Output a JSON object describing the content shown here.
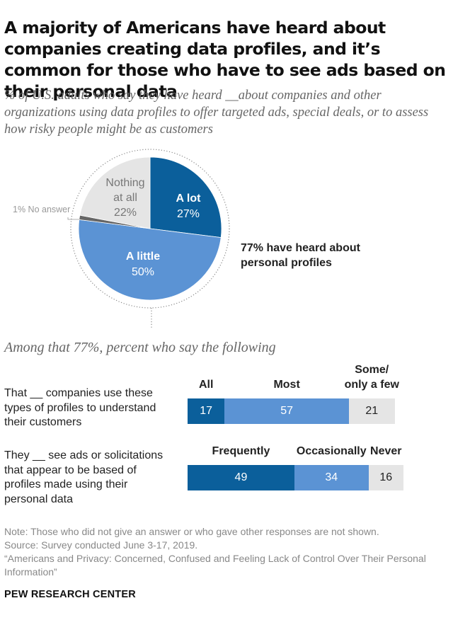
{
  "title": "A majority of Americans have heard about companies creating data profiles, and it’s common for those who have to see ads based on their personal data",
  "subtitle": "% of U.S. adults who say they have heard __about companies and other organizations using data profiles to offer targeted ads, special deals, or to assess how risky people might be as customers",
  "heard_note": "77% have heard about personal profiles",
  "among_label": "Among that 77%, percent who say the following",
  "note": "Note: Those who did not give an answer or who gave other responses are not shown.",
  "source": "Source: Survey conducted June 3-17, 2019.",
  "report": "“Americans and Privacy: Concerned, Confused and Feeling Lack of Control Over Their Personal Information”",
  "brand": "PEW RESEARCH CENTER",
  "colors": {
    "dark_blue": "#0b5f9b",
    "mid_blue": "#5b93d4",
    "light_gray": "#e5e5e5",
    "no_answer": "#666666"
  },
  "chart_data": [
    {
      "type": "pie",
      "slices": [
        {
          "label": "A lot",
          "value": 27,
          "display": "27%",
          "color": "#0b5f9b"
        },
        {
          "label": "A little",
          "value": 50,
          "display": "50%",
          "color": "#5b93d4"
        },
        {
          "label": "No answer",
          "value": 1,
          "display": "1%",
          "color": "#666666"
        },
        {
          "label": "Nothing at all",
          "value": 22,
          "display": "22%",
          "color": "#e5e5e5"
        }
      ],
      "no_answer_text": "1% No answer",
      "nothing_line1": "Nothing",
      "nothing_line2": "at all"
    },
    {
      "type": "bar",
      "orientation": "horizontal-stacked",
      "rows": [
        {
          "label_lines": [
            "That __ companies use these",
            "types of profiles to understand",
            "their customers"
          ],
          "segments": [
            {
              "name": "All",
              "value": 17,
              "color": "#0b5f9b"
            },
            {
              "name": "Most",
              "value": 57,
              "color": "#5b93d4"
            },
            {
              "name": "Some/ only a few",
              "value": 21,
              "color": "#e5e5e5"
            }
          ],
          "header_lines": [
            [
              "All"
            ],
            [
              "Most"
            ],
            [
              "Some/",
              "only a few"
            ]
          ]
        },
        {
          "label_lines": [
            "They __ see ads or solicitations",
            "that appear to be based of",
            "profiles made using their",
            "personal data"
          ],
          "segments": [
            {
              "name": "Frequently",
              "value": 49,
              "color": "#0b5f9b"
            },
            {
              "name": "Occasionally",
              "value": 34,
              "color": "#5b93d4"
            },
            {
              "name": "Never",
              "value": 16,
              "color": "#e5e5e5"
            }
          ],
          "header_lines": [
            [
              "Frequently"
            ],
            [
              "Occasionally"
            ],
            [
              "Never"
            ]
          ]
        }
      ]
    }
  ]
}
